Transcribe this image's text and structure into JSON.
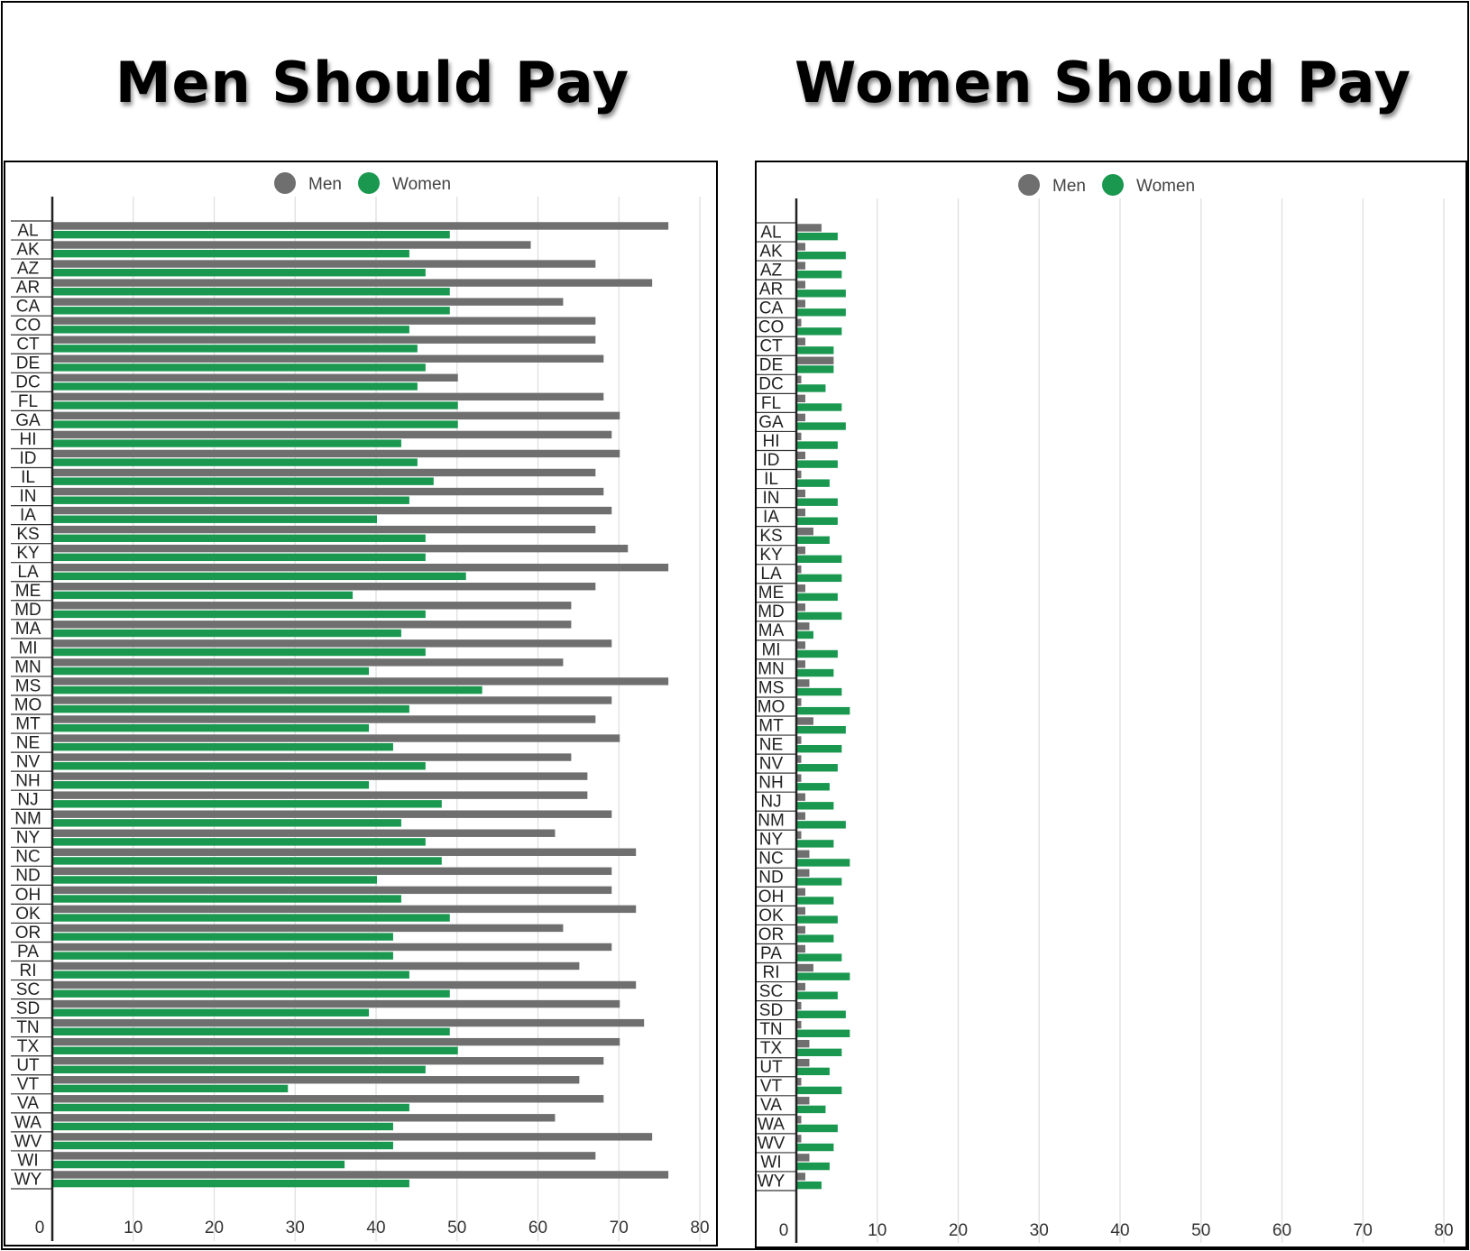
{
  "titles": {
    "left": "Men Should Pay",
    "right": "Women Should Pay"
  },
  "colors": {
    "men": "#6f6f6f",
    "women": "#1a9850",
    "grid": "#dddddd",
    "axis": "#222222"
  },
  "chart_data": [
    {
      "type": "bar",
      "orientation": "horizontal",
      "title": "Men Should Pay",
      "legend": {
        "position": "top-center",
        "entries": [
          "Men",
          "Women"
        ]
      },
      "xlim": [
        0,
        80
      ],
      "xticks": [
        0,
        10,
        20,
        30,
        40,
        50,
        60,
        70,
        80
      ],
      "grid": true,
      "categories": [
        "AL",
        "AK",
        "AZ",
        "AR",
        "CA",
        "CO",
        "CT",
        "DE",
        "DC",
        "FL",
        "GA",
        "HI",
        "ID",
        "IL",
        "IN",
        "IA",
        "KS",
        "KY",
        "LA",
        "ME",
        "MD",
        "MA",
        "MI",
        "MN",
        "MS",
        "MO",
        "MT",
        "NE",
        "NV",
        "NH",
        "NJ",
        "NM",
        "NY",
        "NC",
        "ND",
        "OH",
        "OK",
        "OR",
        "PA",
        "RI",
        "SC",
        "SD",
        "TN",
        "TX",
        "UT",
        "VT",
        "VA",
        "WA",
        "WV",
        "WI",
        "WY"
      ],
      "series": [
        {
          "name": "Men",
          "values": [
            76,
            59,
            67,
            74,
            63,
            67,
            67,
            68,
            50,
            68,
            70,
            69,
            70,
            67,
            68,
            69,
            67,
            71,
            76,
            67,
            64,
            64,
            69,
            63,
            76,
            69,
            67,
            70,
            64,
            66,
            66,
            69,
            62,
            72,
            69,
            69,
            72,
            63,
            69,
            65,
            72,
            70,
            73,
            70,
            68,
            65,
            68,
            62,
            74,
            67,
            76
          ]
        },
        {
          "name": "Women",
          "values": [
            49,
            44,
            46,
            49,
            49,
            44,
            45,
            46,
            45,
            50,
            50,
            43,
            45,
            47,
            44,
            40,
            46,
            46,
            51,
            37,
            46,
            43,
            46,
            39,
            53,
            44,
            39,
            42,
            46,
            39,
            48,
            43,
            46,
            48,
            40,
            43,
            49,
            42,
            42,
            44,
            49,
            39,
            49,
            50,
            46,
            29,
            44,
            42,
            42,
            36,
            44
          ]
        }
      ]
    },
    {
      "type": "bar",
      "orientation": "horizontal",
      "title": "Women Should Pay",
      "legend": {
        "position": "top-center",
        "entries": [
          "Men",
          "Women"
        ]
      },
      "xlim": [
        0,
        80
      ],
      "xticks": [
        0,
        10,
        20,
        30,
        40,
        50,
        60,
        70,
        80
      ],
      "grid": true,
      "categories": [
        "AL",
        "AK",
        "AZ",
        "AR",
        "CA",
        "CO",
        "CT",
        "DE",
        "DC",
        "FL",
        "GA",
        "HI",
        "ID",
        "IL",
        "IN",
        "IA",
        "KS",
        "KY",
        "LA",
        "ME",
        "MD",
        "MA",
        "MI",
        "MN",
        "MS",
        "MO",
        "MT",
        "NE",
        "NV",
        "NH",
        "NJ",
        "NM",
        "NY",
        "NC",
        "ND",
        "OH",
        "OK",
        "OR",
        "PA",
        "RI",
        "SC",
        "SD",
        "TN",
        "TX",
        "UT",
        "VT",
        "VA",
        "WA",
        "WV",
        "WI",
        "WY"
      ],
      "series": [
        {
          "name": "Men",
          "values": [
            3,
            1,
            1,
            1,
            1,
            0.5,
            1,
            4.5,
            0.5,
            1,
            1,
            0.5,
            1,
            0.5,
            1,
            1,
            2,
            1,
            0.5,
            1,
            1,
            1.5,
            1,
            1,
            1.5,
            0.5,
            2,
            0.5,
            0.5,
            0.5,
            1,
            1,
            0.5,
            1.5,
            1.5,
            1,
            1,
            1,
            1,
            2,
            1,
            0.5,
            0.5,
            1.5,
            1.5,
            0.5,
            1.5,
            0.5,
            0.5,
            1.5,
            1
          ]
        },
        {
          "name": "Women",
          "values": [
            5,
            6,
            5.5,
            6,
            6,
            5.5,
            4.5,
            4.5,
            3.5,
            5.5,
            6,
            5,
            5,
            4,
            5,
            5,
            4,
            5.5,
            5.5,
            5,
            5.5,
            2,
            5,
            4.5,
            5.5,
            6.5,
            6,
            5.5,
            5,
            4,
            4.5,
            6,
            4.5,
            6.5,
            5.5,
            4.5,
            5,
            4.5,
            5.5,
            6.5,
            5,
            6,
            6.5,
            5.5,
            4,
            5.5,
            3.5,
            5,
            4.5,
            4,
            3
          ]
        }
      ]
    }
  ]
}
